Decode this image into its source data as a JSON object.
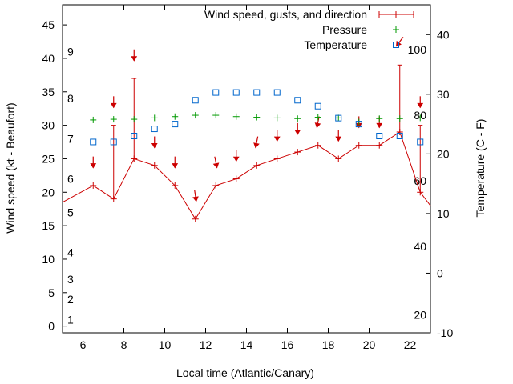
{
  "chart_data": {
    "type": "line",
    "xlabel": "Local time (Atlantic/Canary)",
    "ylabel": "Wind speed (kt - Beaufort)",
    "y2label": "Temperature (C - F)",
    "xlim": [
      5,
      23
    ],
    "ylim": [
      -1,
      48
    ],
    "y2lim": [
      -10,
      45
    ],
    "x_ticks": [
      6,
      8,
      10,
      12,
      14,
      16,
      18,
      20,
      22
    ],
    "y_ticks": [
      0,
      5,
      10,
      15,
      20,
      25,
      30,
      35,
      40,
      45
    ],
    "y2_ticks": [
      -10,
      0,
      10,
      20,
      30,
      40
    ],
    "beaufort_labels": [
      {
        "label": "1",
        "y": 1
      },
      {
        "label": "2",
        "y": 4
      },
      {
        "label": "3",
        "y": 7
      },
      {
        "label": "4",
        "y": 11
      },
      {
        "label": "5",
        "y": 17
      },
      {
        "label": "6",
        "y": 22
      },
      {
        "label": "7",
        "y": 28
      },
      {
        "label": "8",
        "y": 34
      },
      {
        "label": "9",
        "y": 41
      }
    ],
    "fahrenheit_labels": [
      {
        "label": "20",
        "y2": -7
      },
      {
        "label": "40",
        "y2": 4.5
      },
      {
        "label": "60",
        "y2": 15.5
      },
      {
        "label": "80",
        "y2": 26.5
      },
      {
        "label": "100",
        "y2": 37.5
      }
    ],
    "grid": false,
    "legend_position": "top-right",
    "series": [
      {
        "name": "Wind speed, gusts, and direction",
        "color": "#cc0000",
        "x": [
          5,
          6.5,
          7.5,
          8.5,
          9.5,
          10.5,
          11.5,
          12.5,
          13.5,
          14.5,
          15.5,
          16.5,
          17.5,
          18.5,
          19.5,
          20.5,
          21.5,
          22.5,
          23
        ],
        "values": [
          18.5,
          21,
          19,
          25,
          24,
          21,
          16,
          21,
          22,
          24,
          25,
          26,
          27,
          25,
          27,
          27,
          29,
          20,
          18
        ],
        "gusts": [
          {
            "x": 7.5,
            "low": 19,
            "high": 30
          },
          {
            "x": 8.5,
            "low": 25,
            "high": 37
          },
          {
            "x": 21.5,
            "low": 29,
            "high": 39
          },
          {
            "x": 22.5,
            "low": 20,
            "high": 30
          }
        ],
        "direction_arrows": [
          {
            "x": 6.5,
            "y": 24.5,
            "dx": 0,
            "dy": 1
          },
          {
            "x": 7.5,
            "y": 33.5,
            "dx": 0,
            "dy": 1
          },
          {
            "x": 8.5,
            "y": 40.5,
            "dx": 0,
            "dy": 1
          },
          {
            "x": 9.5,
            "y": 27.5,
            "dx": 0,
            "dy": 1
          },
          {
            "x": 10.5,
            "y": 24.5,
            "dx": 0,
            "dy": 1
          },
          {
            "x": 11.5,
            "y": 19.5,
            "dx": 0.15,
            "dy": 1
          },
          {
            "x": 12.5,
            "y": 24.5,
            "dx": 0.2,
            "dy": 1
          },
          {
            "x": 13.5,
            "y": 25.5,
            "dx": 0,
            "dy": 1
          },
          {
            "x": 14.5,
            "y": 27.5,
            "dx": -0.2,
            "dy": 1
          },
          {
            "x": 15.5,
            "y": 28.5,
            "dx": 0,
            "dy": 1
          },
          {
            "x": 16.5,
            "y": 29.5,
            "dx": 0,
            "dy": 1
          },
          {
            "x": 17.5,
            "y": 30.5,
            "dx": -0.2,
            "dy": 1
          },
          {
            "x": 18.5,
            "y": 28.5,
            "dx": 0,
            "dy": 1
          },
          {
            "x": 19.5,
            "y": 30.5,
            "dx": 0,
            "dy": 1
          },
          {
            "x": 20.5,
            "y": 30.5,
            "dx": 0,
            "dy": 1
          },
          {
            "x": 21.5,
            "y": 42.5,
            "dx": -0.6,
            "dy": 0.8
          },
          {
            "x": 22.5,
            "y": 33.5,
            "dx": 0,
            "dy": 1
          }
        ]
      },
      {
        "name": "Pressure",
        "color": "#009900",
        "axis": "y",
        "x": [
          6.5,
          7.5,
          8.5,
          9.5,
          10.5,
          11.5,
          12.5,
          13.5,
          14.5,
          15.5,
          16.5,
          17.5,
          18.5,
          19.5,
          20.5,
          21.5,
          22.5
        ],
        "values": [
          30.8,
          30.9,
          30.9,
          31.1,
          31.3,
          31.5,
          31.5,
          31.3,
          31.2,
          31.1,
          31.0,
          31.2,
          31.1,
          30.5,
          31.0,
          31.0,
          31.1
        ]
      },
      {
        "name": "Temperature",
        "color": "#0066cc",
        "axis": "y2",
        "x": [
          6.5,
          7.5,
          8.5,
          9.5,
          10.5,
          11.5,
          12.5,
          13.5,
          14.5,
          15.5,
          16.5,
          17.5,
          18.5,
          19.5,
          20.5,
          21.5,
          22.5
        ],
        "values": [
          22,
          22,
          23,
          24.2,
          25,
          29,
          30.3,
          30.3,
          30.3,
          30.3,
          29,
          28,
          26,
          25,
          23,
          23,
          22
        ]
      }
    ]
  }
}
